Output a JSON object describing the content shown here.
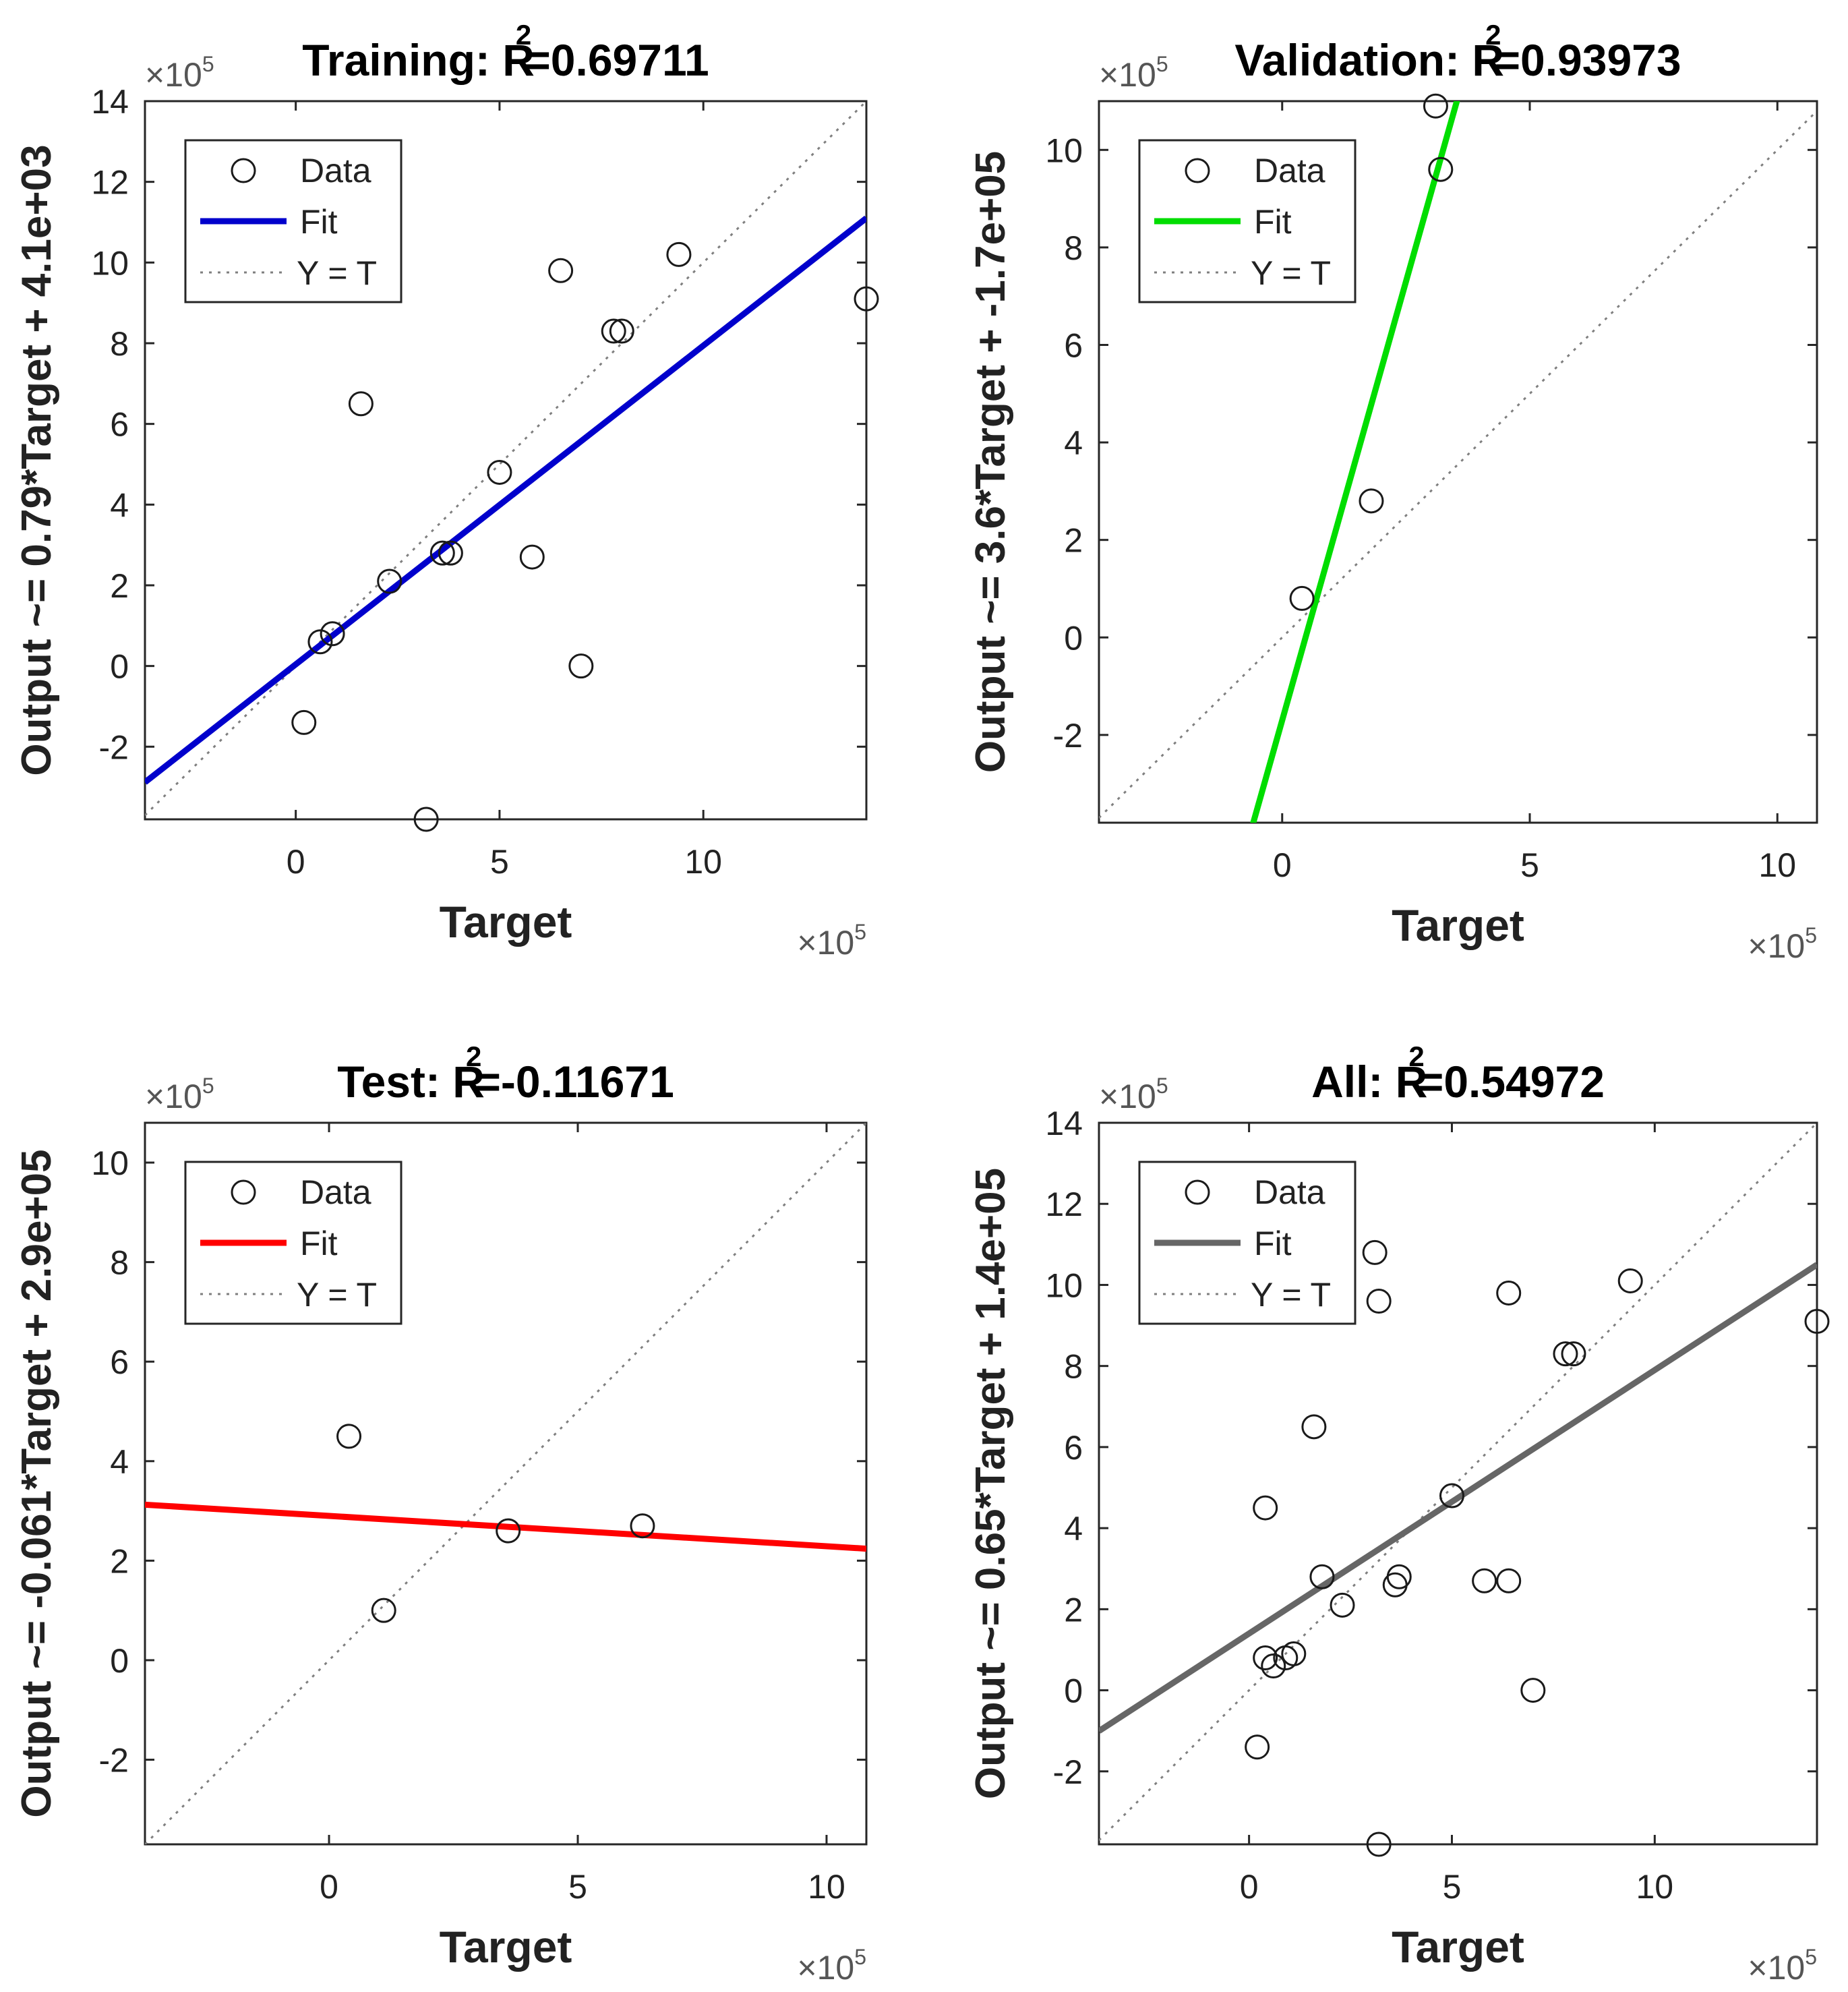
{
  "chart_data": [
    {
      "type": "scatter",
      "title_prefix": "Training: R",
      "r2_sup": "2",
      "r2_value": "=0.69711",
      "xlabel": "Target",
      "ylabel": "Output ~= 0.79*Target + 4.1e+03",
      "x_multiplier": "×10",
      "x_exp": "5",
      "y_multiplier": "×10",
      "y_exp": "5",
      "xlim": [
        -3.7,
        14
      ],
      "ylim": [
        -3.8,
        14
      ],
      "xticks": [
        0,
        5,
        10
      ],
      "yticks": [
        -2,
        0,
        2,
        4,
        6,
        8,
        10,
        12,
        14
      ],
      "fit_color": "#0000cc",
      "fit": {
        "slope": 0.79,
        "intercept": 0.041
      },
      "legend": {
        "data": "Data",
        "fit": "Fit",
        "identity": "Y = T",
        "position": "top-left"
      },
      "points": [
        {
          "x": 0.2,
          "y": -1.4
        },
        {
          "x": 0.6,
          "y": 0.6
        },
        {
          "x": 0.9,
          "y": 0.8
        },
        {
          "x": 1.6,
          "y": 6.5
        },
        {
          "x": 2.3,
          "y": 2.1
        },
        {
          "x": 3.2,
          "y": -3.8
        },
        {
          "x": 3.6,
          "y": 2.8
        },
        {
          "x": 3.8,
          "y": 2.8
        },
        {
          "x": 5.0,
          "y": 4.8
        },
        {
          "x": 5.8,
          "y": 2.7
        },
        {
          "x": 6.5,
          "y": 9.8
        },
        {
          "x": 7.0,
          "y": 0.0
        },
        {
          "x": 7.8,
          "y": 8.3
        },
        {
          "x": 8.0,
          "y": 8.3
        },
        {
          "x": 9.4,
          "y": 10.2
        },
        {
          "x": 14.0,
          "y": 9.1
        }
      ]
    },
    {
      "type": "scatter",
      "title_prefix": "Validation: R",
      "r2_sup": "2",
      "r2_value": "=0.93973",
      "xlabel": "Target",
      "ylabel": "Output ~= 3.6*Target + -1.7e+05",
      "x_multiplier": "×10",
      "x_exp": "5",
      "y_multiplier": "×10",
      "y_exp": "5",
      "xlim": [
        -3.7,
        10.8
      ],
      "ylim": [
        -3.8,
        11
      ],
      "xticks": [
        0,
        5,
        10
      ],
      "yticks": [
        -2,
        0,
        2,
        4,
        6,
        8,
        10
      ],
      "fit_color": "#00dd00",
      "fit": {
        "slope": 3.6,
        "intercept": -1.7
      },
      "legend": {
        "data": "Data",
        "fit": "Fit",
        "identity": "Y = T",
        "position": "top-left"
      },
      "points": [
        {
          "x": 0.4,
          "y": 0.8
        },
        {
          "x": 1.8,
          "y": 2.8
        },
        {
          "x": 3.1,
          "y": 10.9
        },
        {
          "x": 3.2,
          "y": 9.6
        }
      ]
    },
    {
      "type": "scatter",
      "title_prefix": "Test: R",
      "r2_sup": "2",
      "r2_value": "=-0.11671",
      "xlabel": "Target",
      "ylabel": "Output ~= -0.061*Target + 2.9e+05",
      "x_multiplier": "×10",
      "x_exp": "5",
      "y_multiplier": "×10",
      "y_exp": "5",
      "xlim": [
        -3.7,
        10.8
      ],
      "ylim": [
        -3.7,
        10.8
      ],
      "xticks": [
        0,
        5,
        10
      ],
      "yticks": [
        -2,
        0,
        2,
        4,
        6,
        8,
        10
      ],
      "fit_color": "#ff0000",
      "fit": {
        "slope": -0.061,
        "intercept": 2.9
      },
      "legend": {
        "data": "Data",
        "fit": "Fit",
        "identity": "Y = T",
        "position": "top-left"
      },
      "points": [
        {
          "x": 0.4,
          "y": 4.5
        },
        {
          "x": 1.1,
          "y": 1.0
        },
        {
          "x": 3.6,
          "y": 2.6
        },
        {
          "x": 6.3,
          "y": 2.7
        }
      ]
    },
    {
      "type": "scatter",
      "title_prefix": "All: R",
      "r2_sup": "2",
      "r2_value": "=0.54972",
      "xlabel": "Target",
      "ylabel": "Output ~= 0.65*Target + 1.4e+05",
      "x_multiplier": "×10",
      "x_exp": "5",
      "y_multiplier": "×10",
      "y_exp": "5",
      "xlim": [
        -3.7,
        14
      ],
      "ylim": [
        -3.8,
        14
      ],
      "xticks": [
        0,
        5,
        10
      ],
      "yticks": [
        -2,
        0,
        2,
        4,
        6,
        8,
        10,
        12,
        14
      ],
      "fit_color": "#666666",
      "fit": {
        "slope": 0.65,
        "intercept": 1.4
      },
      "legend": {
        "data": "Data",
        "fit": "Fit",
        "identity": "Y = T",
        "position": "top-left"
      },
      "points": [
        {
          "x": 0.2,
          "y": -1.4
        },
        {
          "x": 0.4,
          "y": 4.5
        },
        {
          "x": 0.4,
          "y": 0.8
        },
        {
          "x": 0.6,
          "y": 0.6
        },
        {
          "x": 0.9,
          "y": 0.8
        },
        {
          "x": 1.1,
          "y": 0.9
        },
        {
          "x": 1.6,
          "y": 6.5
        },
        {
          "x": 1.8,
          "y": 2.8
        },
        {
          "x": 2.3,
          "y": 2.1
        },
        {
          "x": 3.1,
          "y": 10.8
        },
        {
          "x": 3.2,
          "y": 9.6
        },
        {
          "x": 3.2,
          "y": -3.8
        },
        {
          "x": 3.6,
          "y": 2.6
        },
        {
          "x": 3.7,
          "y": 2.8
        },
        {
          "x": 5.0,
          "y": 4.8
        },
        {
          "x": 5.8,
          "y": 2.7
        },
        {
          "x": 6.4,
          "y": 9.8
        },
        {
          "x": 6.4,
          "y": 2.7
        },
        {
          "x": 7.0,
          "y": 0.0
        },
        {
          "x": 7.8,
          "y": 8.3
        },
        {
          "x": 8.0,
          "y": 8.3
        },
        {
          "x": 9.4,
          "y": 10.1
        },
        {
          "x": 14.0,
          "y": 9.1
        }
      ]
    }
  ]
}
